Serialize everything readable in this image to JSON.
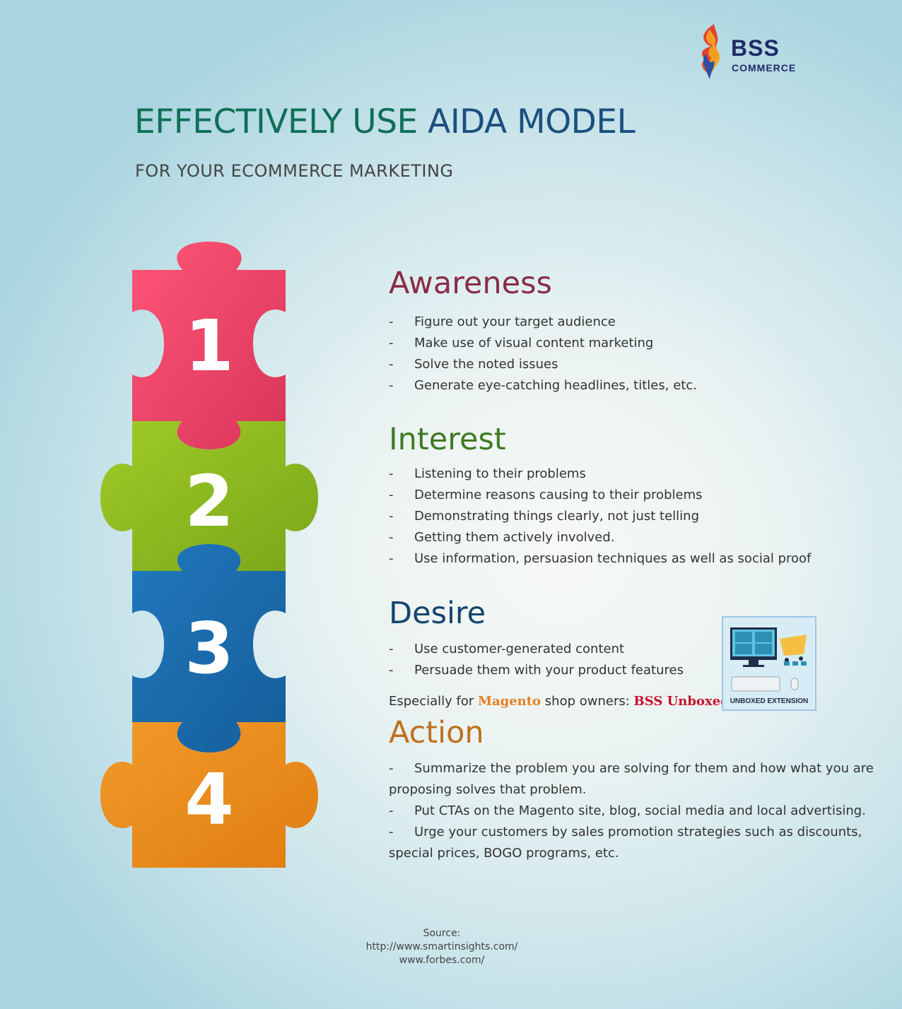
{
  "logo": {
    "brand": "BSS",
    "sub": "COMMERCE"
  },
  "title": {
    "part1": "EFFECTIVELY USE ",
    "part2": "AIDA MODEL"
  },
  "subtitle": "FOR YOUR ECOMMERCE MARKETING",
  "puzzle": {
    "pieces": [
      {
        "number": "1",
        "color": "#f24c6c"
      },
      {
        "number": "2",
        "color": "#92c01f"
      },
      {
        "number": "3",
        "color": "#1b6eb0"
      },
      {
        "number": "4",
        "color": "#ea8a1c"
      }
    ]
  },
  "sections": {
    "awareness": {
      "title": "Awareness",
      "color": "#8a2c46",
      "items": [
        "Figure out your target audience",
        "Make use of visual content marketing",
        "Solve the noted issues",
        "Generate eye-catching headlines, titles, etc."
      ]
    },
    "interest": {
      "title": "Interest",
      "color": "#3f7a22",
      "items": [
        "Listening to their problems",
        "Determine reasons causing to their problems",
        "Demonstrating things clearly, not just telling",
        "Getting them actively involved.",
        "Use information, persuasion techniques as well as social proof"
      ]
    },
    "desire": {
      "title": "Desire",
      "color": "#15456d",
      "items": [
        "Use customer-generated content",
        "Persuade them with your product features"
      ],
      "especially_prefix": "Especially for ",
      "magento": "Magento",
      "shop_owners": " shop owners: ",
      "bss_unboxed": "BSS Unboxed"
    },
    "action": {
      "title": "Action",
      "color": "#c0701e",
      "items": [
        "Summarize the problem you are solving for them and how what you are proposing solves that problem.",
        "Put CTAs on the Magento site, blog, social media and local advertising.",
        "Urge your customers by sales promotion strategies such as discounts, special prices, BOGO programs, etc."
      ]
    }
  },
  "extension": {
    "label": "UNBOXED EXTENSION"
  },
  "source": {
    "label": "Source:",
    "lines": [
      "http://www.smartinsights.com/",
      "www.forbes.com/"
    ]
  }
}
